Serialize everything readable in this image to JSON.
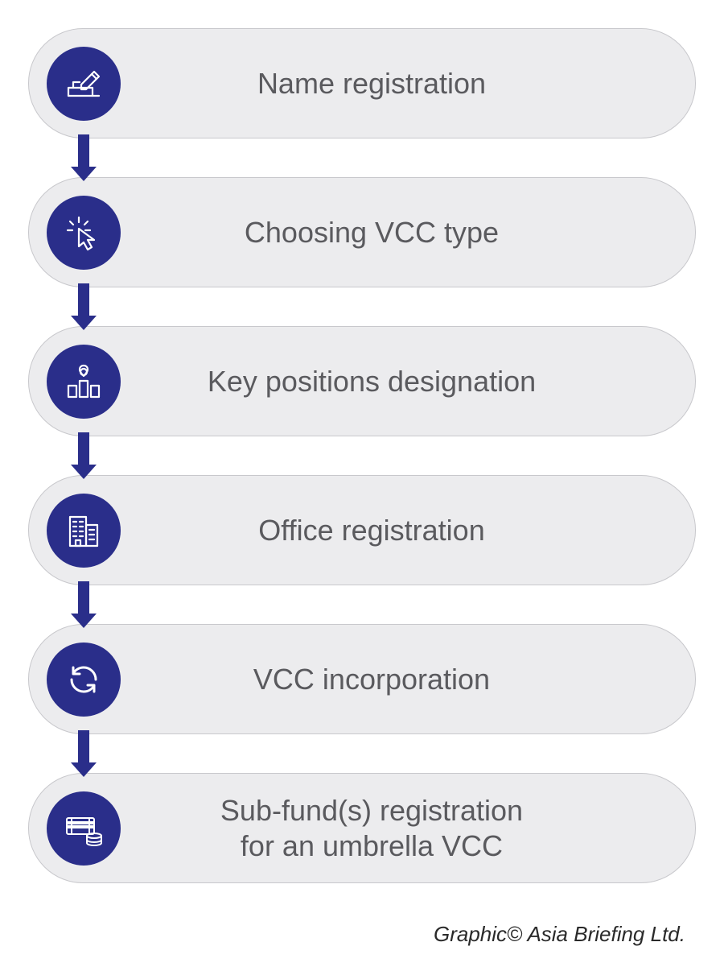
{
  "flowchart": {
    "type": "flowchart",
    "direction": "vertical",
    "background_color": "#ffffff",
    "step_background": "#ececee",
    "step_border_color": "#c8c8cc",
    "step_border_radius": 68,
    "step_height": 137,
    "step_gap": 48,
    "icon_circle_color": "#2a2e8a",
    "icon_circle_diameter": 92,
    "icon_stroke_color": "#ffffff",
    "connector_color": "#2a2e8a",
    "connector_width": 14,
    "label_color": "#5a5a5e",
    "label_fontsize": 36,
    "label_fontweight": 300,
    "steps": [
      {
        "icon": "signature",
        "label": "Name registration"
      },
      {
        "icon": "click",
        "label": "Choosing VCC type"
      },
      {
        "icon": "positions",
        "label": "Key positions designation"
      },
      {
        "icon": "building",
        "label": "Office registration"
      },
      {
        "icon": "refresh",
        "label": "VCC incorporation"
      },
      {
        "icon": "money",
        "label": "Sub-fund(s) registration\nfor an umbrella VCC"
      }
    ]
  },
  "credit": "Graphic© Asia Briefing Ltd."
}
